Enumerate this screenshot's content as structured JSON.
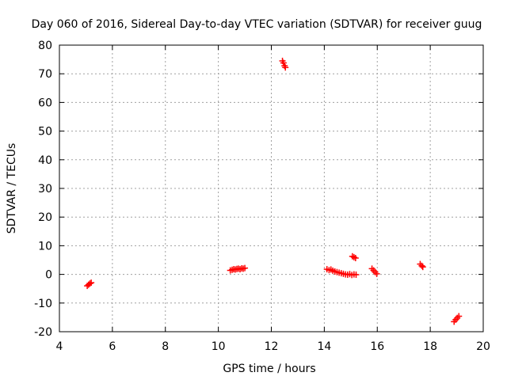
{
  "chart_data": {
    "type": "scatter",
    "title": "Day 060 of 2016, Sidereal Day-to-day VTEC variation (SDTVAR) for receiver guug",
    "xlabel": "GPS time / hours",
    "ylabel": "SDTVAR / TECUs",
    "xlim": [
      4,
      20
    ],
    "ylim": [
      -20,
      80
    ],
    "xticks": [
      "4",
      "6",
      "8",
      "10",
      "12",
      "14",
      "16",
      "18",
      "20"
    ],
    "yticks": [
      "-20",
      "-10",
      "0",
      "10",
      "20",
      "30",
      "40",
      "50",
      "60",
      "70",
      "80"
    ],
    "grid": true,
    "marker": "plus",
    "colors": {
      "points": "#ff0000",
      "grid": "#a0a0a0",
      "axes": "#000000"
    },
    "series": [
      {
        "points": [
          [
            5.05,
            -4.0
          ],
          [
            5.1,
            -3.6
          ],
          [
            5.15,
            -3.2
          ],
          [
            5.2,
            -2.9
          ],
          [
            10.45,
            1.4
          ],
          [
            10.52,
            1.6
          ],
          [
            10.58,
            1.8
          ],
          [
            10.64,
            1.7
          ],
          [
            10.7,
            1.9
          ],
          [
            10.76,
            2.0
          ],
          [
            10.82,
            1.8
          ],
          [
            10.88,
            2.1
          ],
          [
            10.94,
            2.0
          ],
          [
            11.0,
            2.2
          ],
          [
            12.42,
            74.5
          ],
          [
            12.46,
            73.8
          ],
          [
            12.5,
            72.8
          ],
          [
            12.53,
            72.2
          ],
          [
            14.1,
            1.8
          ],
          [
            14.18,
            1.5
          ],
          [
            14.25,
            1.7
          ],
          [
            14.32,
            1.3
          ],
          [
            14.4,
            1.0
          ],
          [
            14.48,
            0.8
          ],
          [
            14.56,
            0.6
          ],
          [
            14.64,
            0.4
          ],
          [
            14.72,
            0.2
          ],
          [
            14.8,
            0.0
          ],
          [
            14.88,
            -0.1
          ],
          [
            14.96,
            0.1
          ],
          [
            15.04,
            -0.2
          ],
          [
            15.12,
            0.0
          ],
          [
            15.2,
            -0.1
          ],
          [
            15.06,
            6.3
          ],
          [
            15.12,
            6.0
          ],
          [
            15.18,
            5.7
          ],
          [
            15.8,
            2.0
          ],
          [
            15.86,
            1.4
          ],
          [
            15.92,
            0.8
          ],
          [
            15.98,
            0.2
          ],
          [
            17.62,
            3.6
          ],
          [
            17.68,
            3.0
          ],
          [
            17.72,
            2.6
          ],
          [
            18.9,
            -16.5
          ],
          [
            18.96,
            -15.8
          ],
          [
            19.02,
            -15.2
          ],
          [
            19.08,
            -14.6
          ]
        ]
      }
    ]
  }
}
